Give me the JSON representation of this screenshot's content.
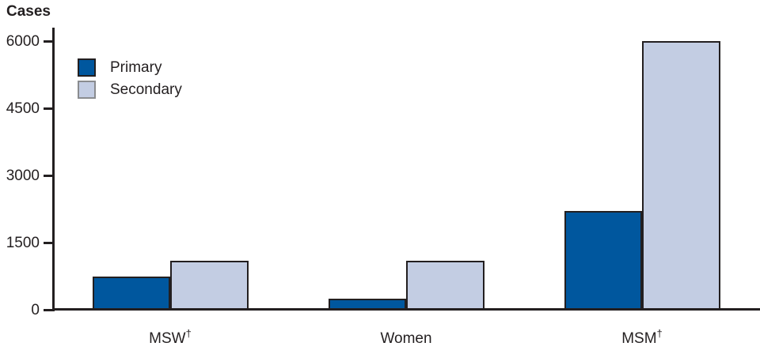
{
  "chart_data": {
    "type": "bar",
    "title": "Cases",
    "ylabel": "Cases",
    "xlabel": "",
    "categories": [
      "MSW†",
      "Women",
      "MSM†"
    ],
    "series": [
      {
        "name": "Primary",
        "color": "#00579e",
        "swatch_border": "#231f20",
        "values": [
          750,
          250,
          2200
        ]
      },
      {
        "name": "Secondary",
        "color": "#c3cde3",
        "swatch_border": "#8a8c8f",
        "values": [
          1100,
          1100,
          6000
        ]
      }
    ],
    "yticks": [
      0,
      1500,
      3000,
      4500,
      6000
    ],
    "ylim": [
      0,
      6000
    ],
    "grid": false,
    "legend_position": "inside-top-left",
    "axis_color": "#231f20",
    "bar_border_color": "#231f20",
    "text_color": "#231f20"
  }
}
